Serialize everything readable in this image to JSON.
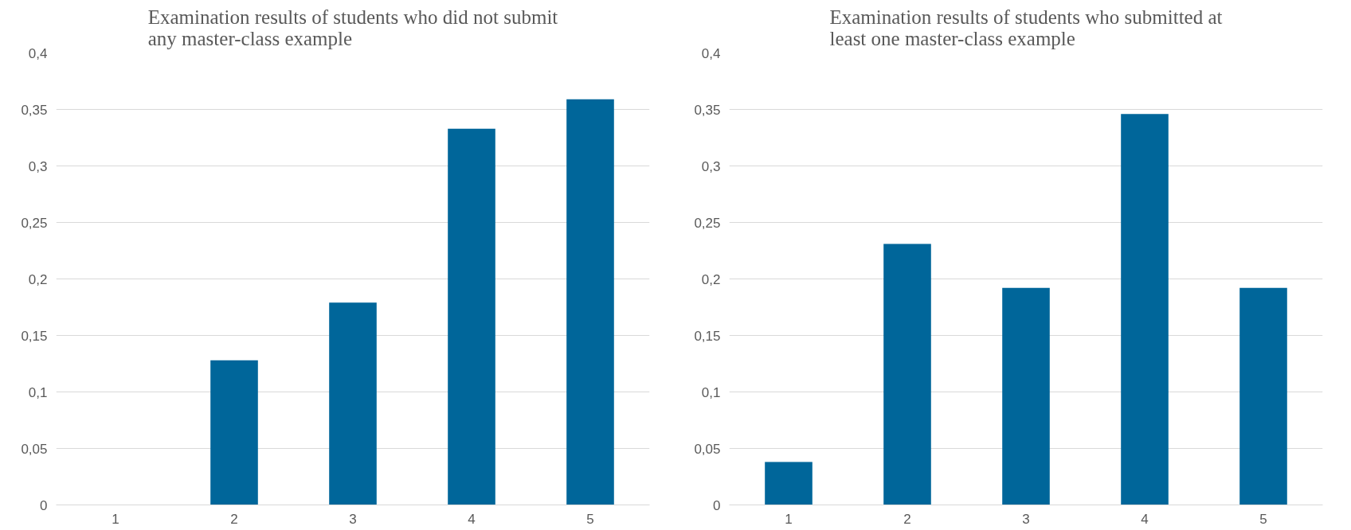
{
  "chart_data": [
    {
      "type": "bar",
      "title": "Examination results of students who did not submit any master-class example",
      "categories": [
        "1",
        "2",
        "3",
        "4",
        "5"
      ],
      "values": [
        0,
        0.128,
        0.179,
        0.333,
        0.359
      ],
      "color": "#00669a",
      "ylim": [
        0,
        0.4
      ],
      "yticks": [
        0,
        {
          "value": 0.05,
          "label": "0,05"
        },
        {
          "value": 0.1,
          "label": "0,1"
        },
        {
          "value": 0.15,
          "label": "0,15"
        },
        {
          "value": 0.2,
          "label": "0,2"
        },
        {
          "value": 0.25,
          "label": "0,25"
        },
        {
          "value": 0.3,
          "label": "0,3"
        },
        {
          "value": 0.35,
          "label": "0,35"
        },
        {
          "value": 0.4,
          "label": "0,4"
        }
      ],
      "grid": "y"
    },
    {
      "type": "bar",
      "title": "Examination results of students who submitted at least one master-class example",
      "categories": [
        "1",
        "2",
        "3",
        "4",
        "5"
      ],
      "values": [
        0.038,
        0.231,
        0.192,
        0.346,
        0.192
      ],
      "color": "#00669a",
      "ylim": [
        0,
        0.4
      ],
      "yticks": [
        0,
        {
          "value": 0.05,
          "label": "0,05"
        },
        {
          "value": 0.1,
          "label": "0,1"
        },
        {
          "value": 0.15,
          "label": "0,15"
        },
        {
          "value": 0.2,
          "label": "0,2"
        },
        {
          "value": 0.25,
          "label": "0,25"
        },
        {
          "value": 0.3,
          "label": "0,3"
        },
        {
          "value": 0.35,
          "label": "0,35"
        },
        {
          "value": 0.4,
          "label": "0,4"
        }
      ],
      "grid": "y"
    }
  ]
}
